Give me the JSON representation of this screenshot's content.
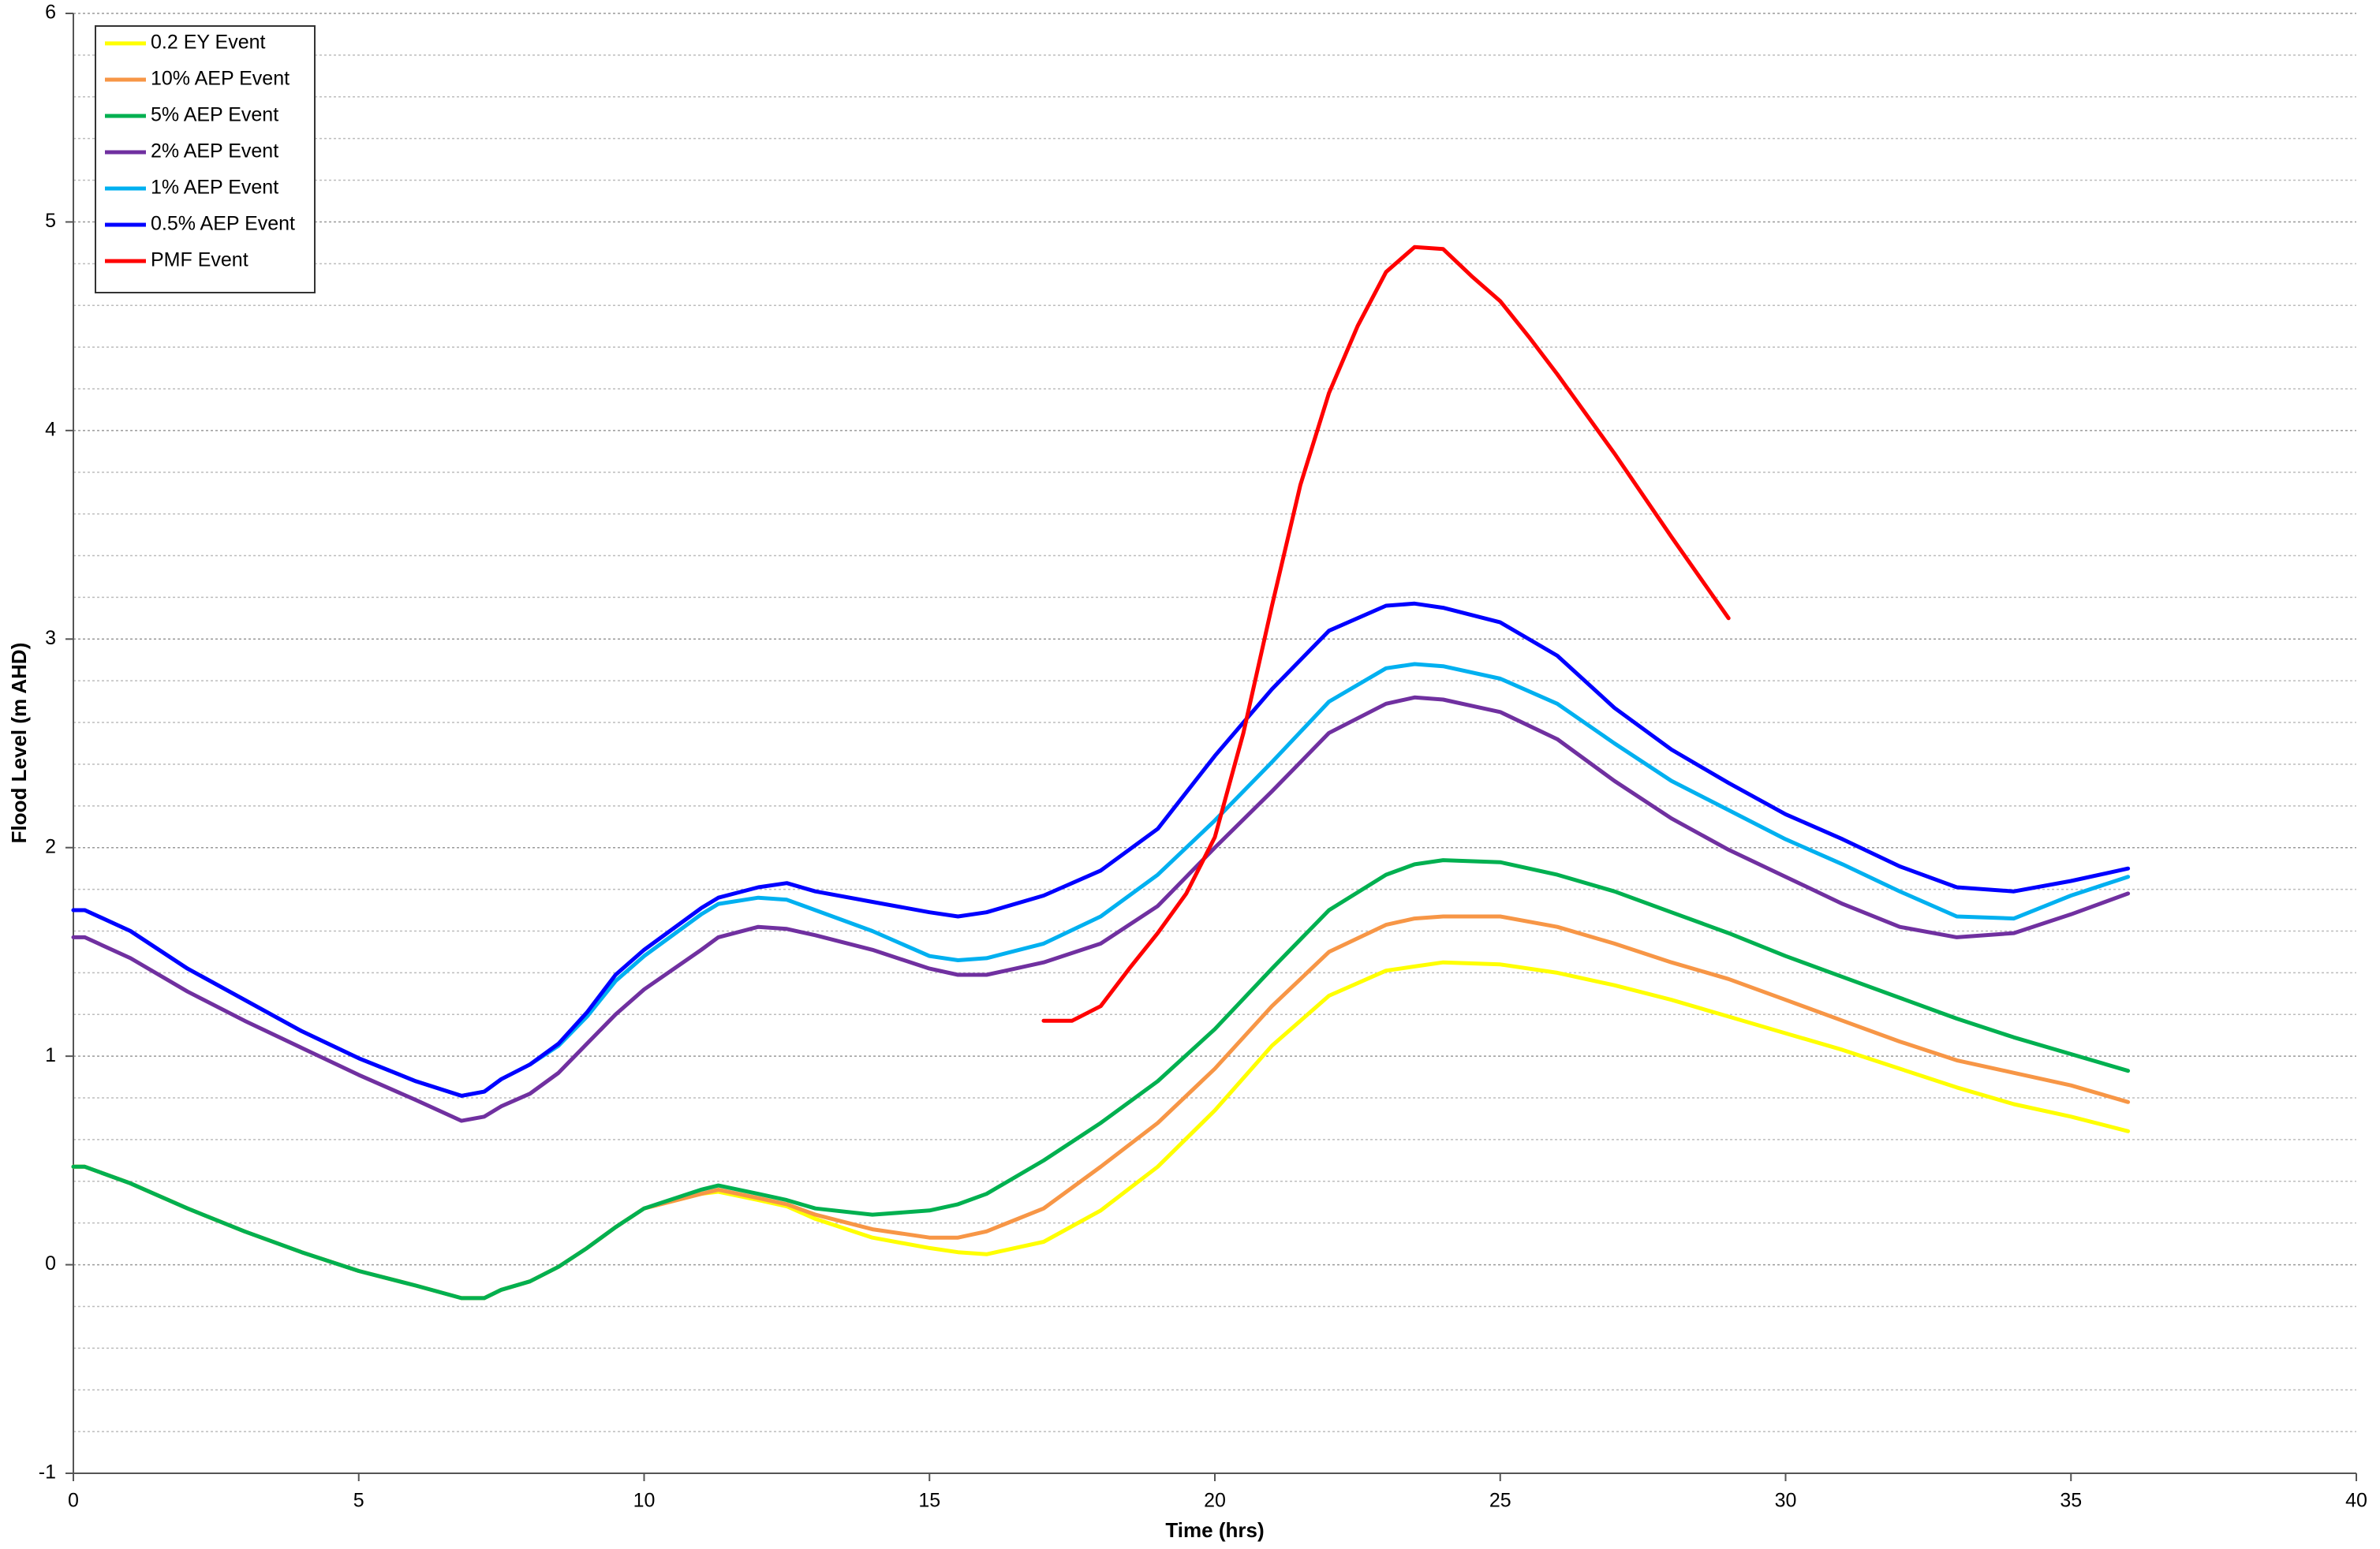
{
  "chart_data": {
    "type": "line",
    "x_label": "Time (hrs)",
    "y_label": "Flood Level (m AHD)",
    "xlim": [
      0,
      40
    ],
    "ylim": [
      -1,
      6
    ],
    "xticks": [
      0,
      5,
      10,
      15,
      20,
      25,
      30,
      35,
      40
    ],
    "yticks": [
      -1,
      0,
      1,
      2,
      3,
      4,
      5,
      6
    ],
    "grid": true,
    "legend": "upper-left",
    "series": [
      {
        "name": "0.2 EY Event",
        "color": "#ffff00",
        "x": [
          0,
          0.2,
          1,
          2,
          3,
          4,
          5,
          6,
          6.8,
          7.2,
          7.5,
          8,
          8.5,
          9,
          9.5,
          10,
          11,
          11.3,
          12,
          12.5,
          13,
          14,
          15,
          15.5,
          16,
          17,
          18,
          19,
          20,
          21,
          22,
          23,
          23.5,
          24,
          25,
          26,
          27,
          28,
          29,
          30,
          31,
          32,
          33,
          34,
          35,
          36
        ],
        "values": [
          0.47,
          0.47,
          0.39,
          0.27,
          0.16,
          0.06,
          -0.03,
          -0.1,
          -0.16,
          -0.16,
          -0.12,
          -0.08,
          -0.01,
          0.08,
          0.18,
          0.27,
          0.34,
          0.35,
          0.31,
          0.28,
          0.22,
          0.13,
          0.08,
          0.06,
          0.05,
          0.11,
          0.26,
          0.47,
          0.74,
          1.05,
          1.29,
          1.41,
          1.43,
          1.45,
          1.44,
          1.4,
          1.34,
          1.27,
          1.19,
          1.11,
          1.03,
          0.94,
          0.85,
          0.77,
          0.71,
          0.64
        ]
      },
      {
        "name": "10% AEP Event",
        "color": "#f79646",
        "x": [
          0,
          0.2,
          1,
          2,
          3,
          4,
          5,
          6,
          6.8,
          7.2,
          7.5,
          8,
          8.5,
          9,
          9.5,
          10,
          11,
          11.3,
          12,
          12.5,
          13,
          14,
          15,
          15.5,
          16,
          17,
          18,
          19,
          20,
          21,
          22,
          23,
          23.5,
          24,
          25,
          26,
          27,
          28,
          29,
          30,
          31,
          32,
          33,
          34,
          35,
          36
        ],
        "values": [
          0.47,
          0.47,
          0.39,
          0.27,
          0.16,
          0.06,
          -0.03,
          -0.1,
          -0.16,
          -0.16,
          -0.12,
          -0.08,
          -0.01,
          0.08,
          0.18,
          0.27,
          0.34,
          0.36,
          0.32,
          0.29,
          0.24,
          0.17,
          0.13,
          0.13,
          0.16,
          0.27,
          0.47,
          0.68,
          0.94,
          1.24,
          1.5,
          1.63,
          1.66,
          1.67,
          1.67,
          1.62,
          1.54,
          1.45,
          1.37,
          1.27,
          1.17,
          1.07,
          0.98,
          0.92,
          0.86,
          0.78
        ]
      },
      {
        "name": "5% AEP Event",
        "color": "#00b050",
        "x": [
          0,
          0.2,
          1,
          2,
          3,
          4,
          5,
          6,
          6.8,
          7.2,
          7.5,
          8,
          8.5,
          9,
          9.5,
          10,
          11,
          11.3,
          12,
          12.5,
          13,
          14,
          15,
          15.5,
          16,
          17,
          18,
          19,
          20,
          21,
          22,
          23,
          23.5,
          24,
          25,
          26,
          27,
          28,
          29,
          30,
          31,
          32,
          33,
          34,
          35,
          36
        ],
        "values": [
          0.47,
          0.47,
          0.39,
          0.27,
          0.16,
          0.06,
          -0.03,
          -0.1,
          -0.16,
          -0.16,
          -0.12,
          -0.08,
          -0.01,
          0.08,
          0.18,
          0.27,
          0.36,
          0.38,
          0.34,
          0.31,
          0.27,
          0.24,
          0.26,
          0.29,
          0.34,
          0.5,
          0.68,
          0.88,
          1.13,
          1.42,
          1.7,
          1.87,
          1.92,
          1.94,
          1.93,
          1.87,
          1.79,
          1.69,
          1.59,
          1.48,
          1.38,
          1.28,
          1.18,
          1.09,
          1.01,
          0.93
        ]
      },
      {
        "name": "2% AEP Event",
        "color": "#7030a0",
        "x": [
          0,
          0.2,
          1,
          2,
          3,
          4,
          5,
          6,
          6.8,
          7.2,
          7.5,
          8,
          8.5,
          9,
          9.5,
          10,
          11,
          11.3,
          12,
          12.5,
          13,
          14,
          15,
          15.5,
          16,
          17,
          18,
          19,
          20,
          21,
          22,
          23,
          23.5,
          24,
          25,
          26,
          27,
          28,
          29,
          30,
          31,
          32,
          33,
          34,
          35,
          36
        ],
        "values": [
          1.57,
          1.57,
          1.47,
          1.31,
          1.17,
          1.04,
          0.91,
          0.79,
          0.69,
          0.71,
          0.76,
          0.82,
          0.92,
          1.06,
          1.2,
          1.32,
          1.51,
          1.57,
          1.62,
          1.61,
          1.58,
          1.51,
          1.42,
          1.39,
          1.39,
          1.45,
          1.54,
          1.72,
          2.0,
          2.27,
          2.55,
          2.69,
          2.72,
          2.71,
          2.65,
          2.52,
          2.32,
          2.14,
          1.99,
          1.86,
          1.73,
          1.62,
          1.57,
          1.59,
          1.68,
          1.78
        ]
      },
      {
        "name": "1% AEP Event",
        "color": "#00b0f0",
        "x": [
          0,
          0.2,
          1,
          2,
          3,
          4,
          5,
          6,
          6.8,
          7.2,
          7.5,
          8,
          8.5,
          9,
          9.5,
          10,
          11,
          11.3,
          12,
          12.5,
          13,
          14,
          15,
          15.5,
          16,
          17,
          18,
          19,
          20,
          21,
          22,
          23,
          23.5,
          24,
          25,
          26,
          27,
          28,
          29,
          30,
          31,
          32,
          33,
          34,
          35,
          36
        ],
        "values": [
          1.7,
          1.7,
          1.6,
          1.42,
          1.27,
          1.12,
          0.99,
          0.88,
          0.81,
          0.83,
          0.89,
          0.96,
          1.05,
          1.19,
          1.36,
          1.48,
          1.68,
          1.73,
          1.76,
          1.75,
          1.7,
          1.6,
          1.48,
          1.46,
          1.47,
          1.54,
          1.67,
          1.87,
          2.13,
          2.41,
          2.7,
          2.86,
          2.88,
          2.87,
          2.81,
          2.69,
          2.5,
          2.32,
          2.18,
          2.04,
          1.92,
          1.79,
          1.67,
          1.66,
          1.77,
          1.86
        ]
      },
      {
        "name": "0.5% AEP Event",
        "color": "#0000ff",
        "x": [
          0,
          0.2,
          1,
          2,
          3,
          4,
          5,
          6,
          6.8,
          7.2,
          7.5,
          8,
          8.5,
          9,
          9.5,
          10,
          11,
          11.3,
          12,
          12.5,
          13,
          14,
          15,
          15.5,
          16,
          17,
          18,
          19,
          20,
          21,
          22,
          23,
          23.5,
          24,
          25,
          26,
          27,
          28,
          29,
          30,
          31,
          32,
          33,
          34,
          35,
          36
        ],
        "values": [
          1.7,
          1.7,
          1.6,
          1.42,
          1.27,
          1.12,
          0.99,
          0.88,
          0.81,
          0.83,
          0.89,
          0.96,
          1.06,
          1.21,
          1.39,
          1.51,
          1.71,
          1.76,
          1.81,
          1.83,
          1.79,
          1.74,
          1.69,
          1.67,
          1.69,
          1.77,
          1.89,
          2.09,
          2.44,
          2.76,
          3.04,
          3.16,
          3.17,
          3.15,
          3.08,
          2.92,
          2.67,
          2.47,
          2.31,
          2.16,
          2.04,
          1.91,
          1.81,
          1.79,
          1.84,
          1.9
        ]
      },
      {
        "name": "PMF Event",
        "color": "#ff0000",
        "x": [
          17,
          17.5,
          18,
          18.5,
          19,
          19.5,
          20,
          20.5,
          21,
          21.5,
          22,
          22.5,
          23,
          23.5,
          24,
          24.5,
          25,
          25.5,
          26,
          27,
          28,
          29
        ],
        "values": [
          1.17,
          1.17,
          1.24,
          1.42,
          1.59,
          1.78,
          2.05,
          2.55,
          3.16,
          3.74,
          4.18,
          4.5,
          4.76,
          4.88,
          4.87,
          4.74,
          4.62,
          4.45,
          4.27,
          3.89,
          3.49,
          3.1
        ]
      }
    ]
  }
}
